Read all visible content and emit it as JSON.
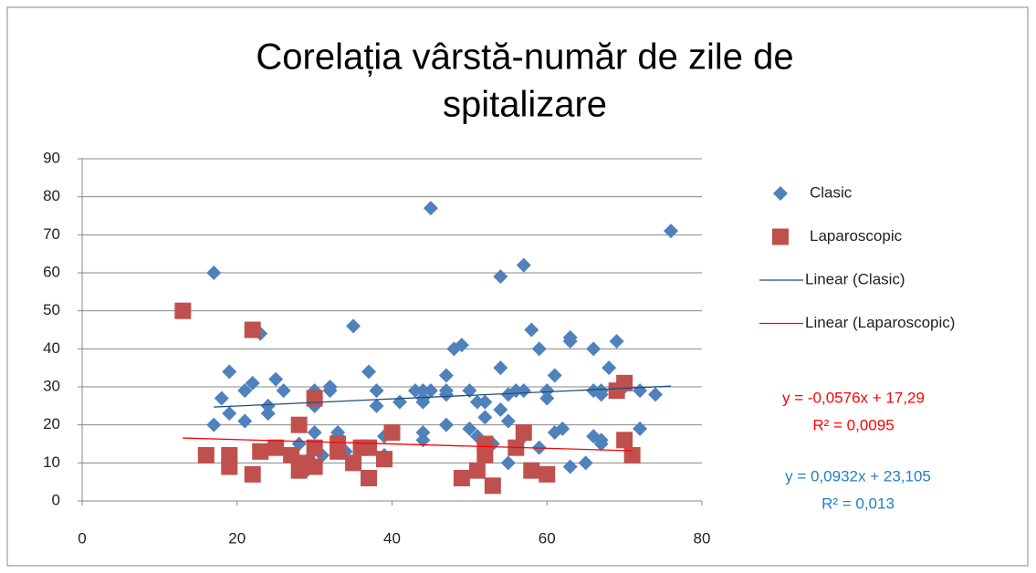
{
  "chart_data": {
    "type": "scatter",
    "title": [
      "Corelația vârstă-număr de zile de",
      "spitalizare"
    ],
    "xlim": [
      0,
      80
    ],
    "xticks": [
      0,
      20,
      40,
      60,
      80
    ],
    "ylim": [
      0,
      90
    ],
    "yticks": [
      0,
      10,
      20,
      30,
      40,
      50,
      60,
      70,
      80,
      90
    ],
    "grid": true,
    "legend": "right",
    "series": [
      {
        "name": "Clasic",
        "color": "#4f81bd",
        "marker": "diamond",
        "x": [
          17,
          17,
          18,
          19,
          19,
          21,
          21,
          22,
          23,
          24,
          24,
          25,
          26,
          28,
          29,
          30,
          30,
          30,
          31,
          32,
          32,
          33,
          33,
          34,
          35,
          36,
          37,
          38,
          38,
          39,
          39,
          41,
          43,
          44,
          44,
          44,
          44,
          44,
          45,
          45,
          47,
          47,
          47,
          47,
          48,
          49,
          50,
          50,
          51,
          51,
          52,
          52,
          53,
          54,
          54,
          54,
          55,
          55,
          55,
          56,
          57,
          57,
          57,
          58,
          59,
          59,
          60,
          60,
          61,
          61,
          62,
          63,
          63,
          63,
          65,
          66,
          66,
          66,
          67,
          67,
          67,
          67,
          68,
          69,
          70,
          72,
          72,
          74,
          76
        ],
        "values": [
          60,
          20,
          27,
          34,
          23,
          21,
          29,
          31,
          44,
          25,
          23,
          32,
          29,
          15,
          8,
          29,
          25,
          18,
          12,
          30,
          29,
          18,
          17,
          13,
          46,
          14,
          34,
          29,
          25,
          17,
          12,
          26,
          29,
          29,
          27,
          26,
          18,
          16,
          77,
          29,
          33,
          29,
          28,
          20,
          40,
          41,
          29,
          19,
          26,
          17,
          26,
          22,
          15,
          59,
          35,
          24,
          28,
          21,
          10,
          29,
          62,
          29,
          17,
          45,
          40,
          14,
          29,
          27,
          33,
          18,
          19,
          43,
          42,
          9,
          10,
          40,
          29,
          17,
          29,
          28,
          16,
          15,
          35,
          42,
          30,
          29,
          19,
          28,
          71
        ]
      },
      {
        "name": "Laparoscopic",
        "color": "#c0504d",
        "marker": "square",
        "x": [
          13,
          16,
          19,
          19,
          22,
          22,
          23,
          25,
          27,
          28,
          28,
          29,
          30,
          30,
          30,
          33,
          33,
          35,
          36,
          37,
          37,
          39,
          40,
          49,
          51,
          52,
          52,
          53,
          56,
          57,
          58,
          60,
          69,
          70,
          70,
          71
        ],
        "values": [
          50,
          12,
          12,
          9,
          45,
          7,
          13,
          14,
          12,
          20,
          8,
          10,
          27,
          14,
          9,
          15,
          13,
          10,
          14,
          14,
          6,
          11,
          18,
          6,
          8,
          15,
          12,
          4,
          14,
          18,
          8,
          7,
          29,
          31,
          16,
          12
        ]
      }
    ],
    "trendlines": [
      {
        "name": "Linear (Clasic)",
        "color": "#1f4e79",
        "x": [
          17,
          76
        ],
        "values": [
          24.69,
          30.19
        ]
      },
      {
        "name": "Linear (Laparoscopic)",
        "color": "#ff0000",
        "x": [
          13,
          71
        ],
        "values": [
          16.54,
          13.2
        ]
      }
    ],
    "annotations": [
      {
        "text": "y = -0,0576x + 17,29",
        "color": "#ff0000"
      },
      {
        "text": "R² = 0,0095",
        "color": "#ff0000"
      },
      {
        "text": "y = 0,0932x + 23,105",
        "color": "#1f7fc9"
      },
      {
        "text": "R² = 0,013",
        "color": "#1f7fc9"
      }
    ]
  }
}
